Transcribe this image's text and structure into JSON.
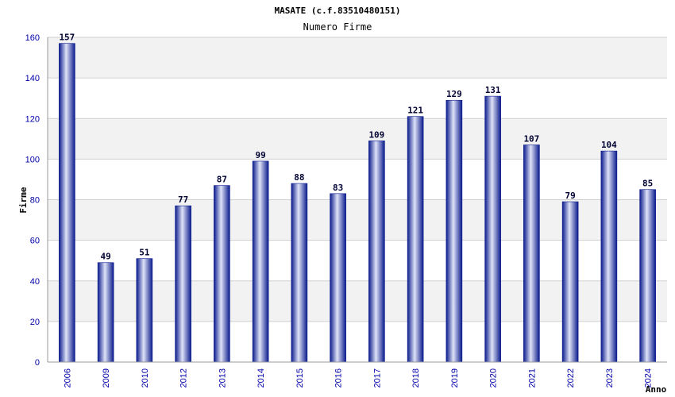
{
  "chart_data": {
    "type": "bar",
    "title": "MASATE (c.f.83510480151)",
    "subtitle": "Numero Firme",
    "xlabel": "Anno",
    "ylabel": "Firme",
    "categories": [
      "2006",
      "2009",
      "2010",
      "2012",
      "2013",
      "2014",
      "2015",
      "2016",
      "2017",
      "2018",
      "2019",
      "2020",
      "2021",
      "2022",
      "2023",
      "2024"
    ],
    "values": [
      157,
      49,
      51,
      77,
      87,
      99,
      88,
      83,
      109,
      121,
      129,
      131,
      107,
      79,
      104,
      85
    ],
    "ylim": [
      0,
      160
    ],
    "yticks": [
      0,
      20,
      40,
      60,
      80,
      100,
      120,
      140,
      160
    ],
    "grid": true,
    "colors": {
      "bar_dark": "#0a1a8c",
      "bar_light": "#dfe3f7",
      "band": "#f2f2f2",
      "grid": "#d0d0d0",
      "tick_text": "#0000aa"
    }
  }
}
